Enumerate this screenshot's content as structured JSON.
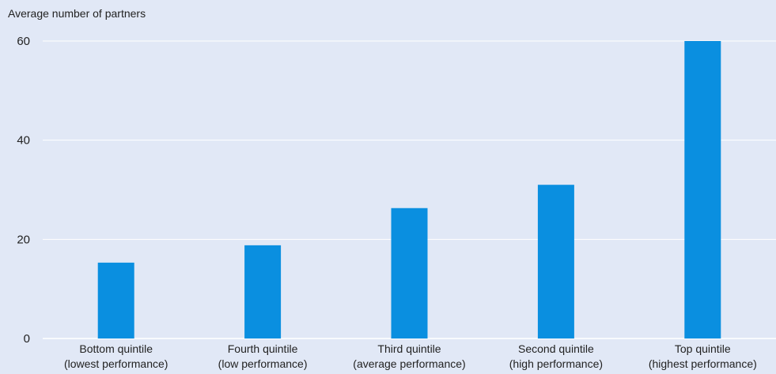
{
  "chart_data": {
    "type": "bar",
    "ylabel": "Average number of partners",
    "categories": [
      [
        "Bottom quintile",
        "(lowest performance)"
      ],
      [
        "Fourth quintile",
        "(low performance)"
      ],
      [
        "Third quintile",
        "(average performance)"
      ],
      [
        "Second quintile",
        "(high performance)"
      ],
      [
        "Top quintile",
        "(highest performance)"
      ]
    ],
    "values": [
      15.3,
      18.8,
      26.3,
      31.0,
      60.0
    ],
    "ylim": [
      0,
      60
    ],
    "yticks": [
      0,
      20,
      40,
      60
    ],
    "grid": true,
    "colors": {
      "bar": "#0a8fe0",
      "background": "#e1e8f6",
      "grid": "#ffffff"
    }
  }
}
